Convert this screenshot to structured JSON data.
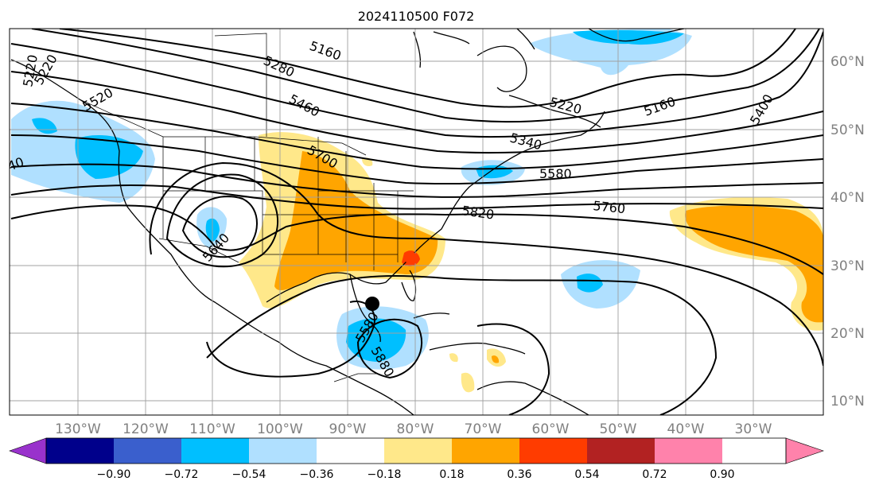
{
  "title": "2024110500 F072",
  "longitude_labels": [
    "130°W",
    "120°W",
    "110°W",
    "100°W",
    "90°W",
    "80°W",
    "70°W",
    "60°W",
    "50°W",
    "40°W",
    "30°W"
  ],
  "latitude_labels": [
    "60°N",
    "50°N",
    "40°N",
    "30°N",
    "20°N",
    "10°N"
  ],
  "contour_labels": [
    "5160",
    "5280",
    "5460",
    "5520",
    "5220",
    "5700",
    "5340",
    "5580",
    "5820",
    "5760",
    "5640",
    "5160",
    "5400",
    "5220",
    "5880",
    "5580",
    "40",
    "5220"
  ],
  "colorbar": {
    "tick_labels": [
      "−0.90",
      "−0.72",
      "−0.54",
      "−0.36",
      "−0.18",
      "0.18",
      "0.36",
      "0.54",
      "0.72",
      "0.90"
    ],
    "colors": [
      "#9932cc",
      "#00008b",
      "#3a5fcd",
      "#00bfff",
      "#b0e0ff",
      "#ffffff",
      "#ffe88a",
      "#ffa500",
      "#ff3c00",
      "#b22222",
      "#ff82ab"
    ]
  },
  "shading_colors": {
    "light_blue": "#b0e0ff",
    "blue": "#00bfff",
    "yellow": "#ffe88a",
    "orange": "#ffa500",
    "red": "#ff3c00"
  }
}
